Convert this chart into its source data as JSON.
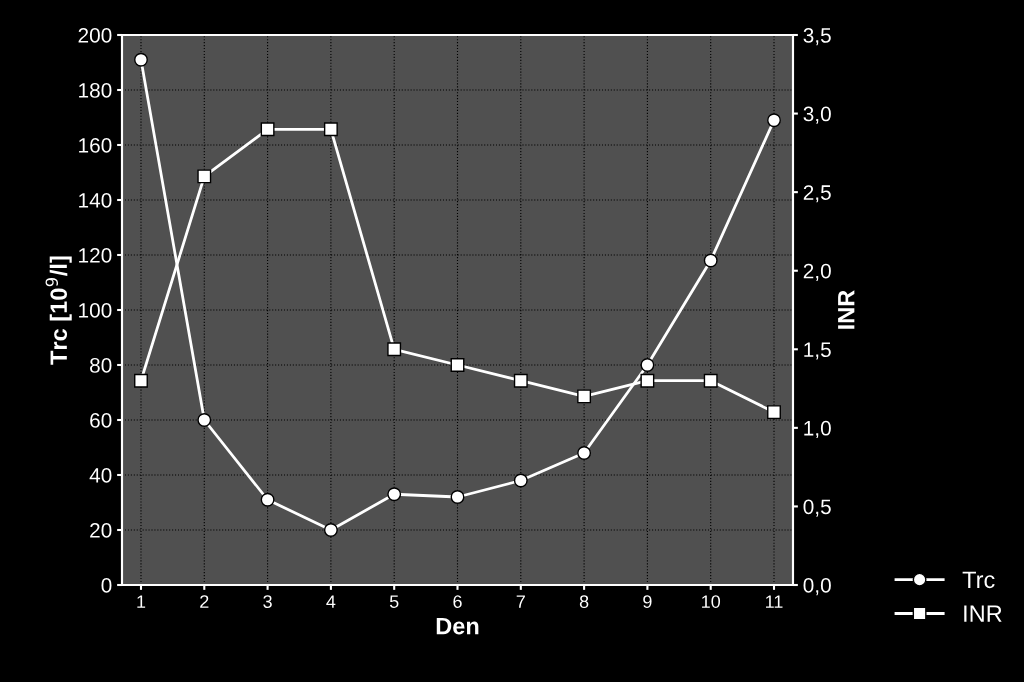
{
  "chart_data": {
    "type": "line",
    "xlabel": "Den",
    "ylabel": "Trc [10$^{9}$/l]",
    "y2label": "INR",
    "x": [
      1,
      2,
      3,
      4,
      5,
      6,
      7,
      8,
      9,
      10,
      11
    ],
    "series": [
      {
        "name": "Trc",
        "color": "#ffffff",
        "marker": "circle",
        "values": [
          191,
          60,
          31,
          20,
          33,
          32,
          38,
          48,
          80,
          118,
          169
        ]
      },
      {
        "name": "INR",
        "color": "#ffffff",
        "marker": "square",
        "axis": "y2",
        "values": [
          1.3,
          2.6,
          2.9,
          2.9,
          1.5,
          1.4,
          1.3,
          1.2,
          1.3,
          1.3,
          1.1
        ]
      }
    ],
    "xlim": [
      0.7,
      11.3
    ],
    "xticks": [
      1,
      2,
      3,
      4,
      5,
      6,
      7,
      8,
      9,
      10,
      11
    ],
    "ylim": [
      0,
      200
    ],
    "yticks": [
      0,
      20,
      40,
      60,
      80,
      100,
      120,
      140,
      160,
      180,
      200
    ],
    "y2lim": [
      0,
      3.5
    ],
    "y2ticks": [
      {
        "value": 0,
        "label": "0,0"
      },
      {
        "value": 0.5,
        "label": "0,5"
      },
      {
        "value": 1,
        "label": "1,0"
      },
      {
        "value": 1.5,
        "label": "1,5"
      },
      {
        "value": 2,
        "label": "2,0"
      },
      {
        "value": 2.5,
        "label": "2,5"
      },
      {
        "value": 3,
        "label": "3,0"
      },
      {
        "value": 3.5,
        "label": "3,5"
      }
    ],
    "grid": true,
    "legend": "bottom right",
    "line_style": "solid"
  }
}
